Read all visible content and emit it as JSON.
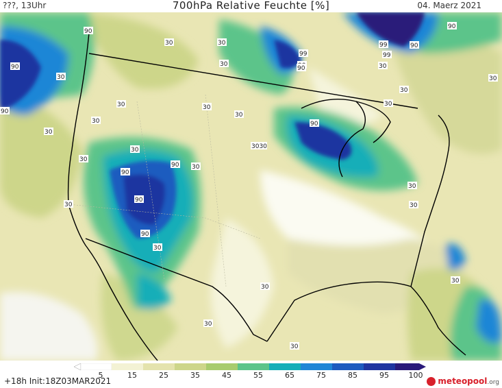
{
  "header": {
    "run_label": "???, 13Uhr",
    "title": "700hPa Relative Feuchte [%]",
    "date": "04. Maerz 2021"
  },
  "legend": {
    "ticks": [
      "5",
      "15",
      "25",
      "35",
      "45",
      "55",
      "65",
      "75",
      "85",
      "95",
      "100"
    ],
    "colors": [
      "#ffffff",
      "#f3f2d4",
      "#e4e3ad",
      "#cdd68a",
      "#a8cc6e",
      "#5cc48a",
      "#15aeb8",
      "#1f86d6",
      "#1d5bbf",
      "#1f35a0",
      "#2a1a7a"
    ]
  },
  "map": {
    "contour_labels": [
      {
        "text": "90"
      },
      {
        "text": "90"
      },
      {
        "text": "90"
      },
      {
        "text": "30"
      },
      {
        "text": "30"
      },
      {
        "text": "30"
      },
      {
        "text": "30"
      },
      {
        "text": "30"
      },
      {
        "text": "30"
      },
      {
        "text": "30"
      },
      {
        "text": "30"
      },
      {
        "text": "90"
      },
      {
        "text": "99"
      },
      {
        "text": "90"
      },
      {
        "text": "99"
      },
      {
        "text": "99"
      },
      {
        "text": "90"
      },
      {
        "text": "90"
      },
      {
        "text": "30"
      },
      {
        "text": "30"
      },
      {
        "text": "30"
      },
      {
        "text": "90"
      },
      {
        "text": "30"
      },
      {
        "text": "30"
      },
      {
        "text": "30"
      },
      {
        "text": "90"
      },
      {
        "text": "90"
      },
      {
        "text": "90"
      },
      {
        "text": "90"
      },
      {
        "text": "30"
      },
      {
        "text": "30"
      },
      {
        "text": "30"
      },
      {
        "text": "30"
      },
      {
        "text": "30"
      },
      {
        "text": "30"
      },
      {
        "text": "30"
      },
      {
        "text": "30"
      },
      {
        "text": "3030"
      },
      {
        "text": "30"
      },
      {
        "text": "30"
      }
    ]
  },
  "footer": {
    "init": "+18h  Init:18Z03MAR2021",
    "brand": "meteopool",
    "brand_tld": ".org"
  }
}
